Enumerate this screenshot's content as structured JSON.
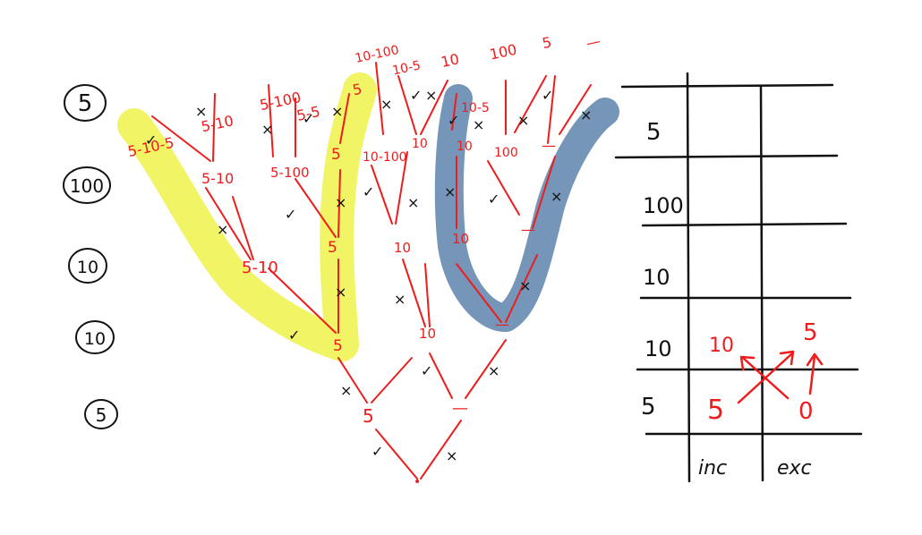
{
  "colors": {
    "ink": "#111111",
    "red": "#ee1c1c",
    "yellow_highlight": "#eef24a",
    "blue_highlight": "#6e8fb5",
    "olive_mark": "#6a7a1e",
    "background": "#ffffff"
  },
  "levels": {
    "circled_values": [
      "5",
      "100",
      "10",
      "10",
      "5"
    ]
  },
  "tree": {
    "top_labels": [
      "5-10-5",
      "5-10",
      "5-100",
      "5-5",
      "5",
      "10-100",
      "10-5",
      "10",
      "100",
      "5",
      "—"
    ],
    "mid_labels": [
      "5-10",
      "5-100",
      "5",
      "10-100",
      "10",
      "10-5",
      "10",
      "100",
      "—"
    ],
    "lower_labels": [
      "5-10",
      "5",
      "5",
      "10",
      "10",
      "10",
      "—",
      "—"
    ],
    "bottom_labels": [
      "5",
      "—"
    ],
    "include_mark": "✓",
    "exclude_mark": "×",
    "root_dot": "•"
  },
  "table": {
    "row_labels": [
      "5",
      "100",
      "10",
      "10",
      "5"
    ],
    "col_labels": [
      "inc",
      "exc"
    ],
    "annotations": {
      "inc_top": "10",
      "exc_top": "5",
      "inc_bottom": "5",
      "exc_bottom": "0"
    }
  }
}
